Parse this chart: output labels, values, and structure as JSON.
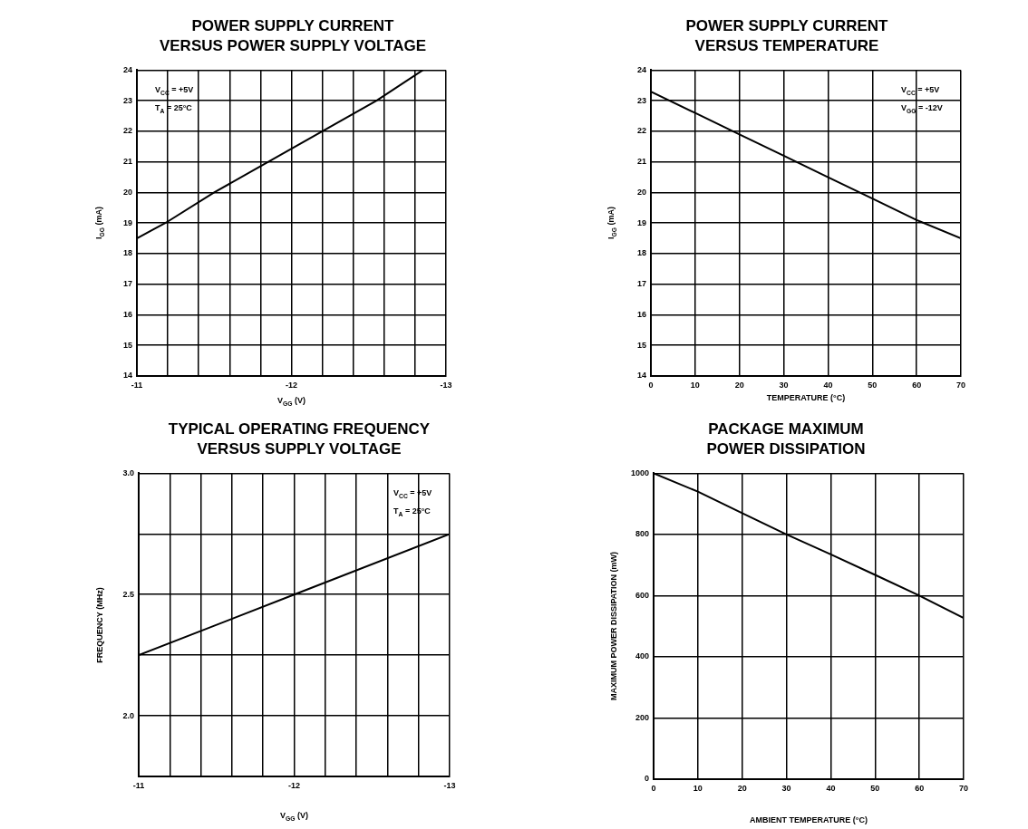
{
  "chart_data": [
    {
      "type": "line",
      "title": "POWER SUPPLY CURRENT\nVERSUS POWER SUPPLY VOLTAGE",
      "xlabel": "V$_{GG}$ (V)",
      "ylabel": "I$_{GG}$ (mA)",
      "annotations": [
        "V$_{CC}$ = +5V",
        "T$_{A}$ = 25°C"
      ],
      "x": [
        -11,
        -11.2,
        -11.5,
        -11.85,
        -12.2,
        -12.55,
        -12.85
      ],
      "values": [
        18.5,
        19.05,
        20,
        21,
        22,
        23,
        24
      ],
      "color": "#000000",
      "xlim": [
        -11,
        -13
      ],
      "ylim": [
        14,
        24
      ],
      "xticks": [
        -11,
        {
          "value": -11.2,
          "label": null
        },
        {
          "value": -11.4,
          "label": null
        },
        {
          "value": -11.6,
          "label": null
        },
        {
          "value": -11.8,
          "label": null
        },
        -12,
        {
          "value": -12.2,
          "label": null
        },
        {
          "value": -12.4,
          "label": null
        },
        {
          "value": -12.6,
          "label": null
        },
        {
          "value": -12.8,
          "label": null
        },
        -13
      ],
      "yticks": [
        14,
        15,
        16,
        17,
        18,
        19,
        20,
        21,
        22,
        23,
        24
      ],
      "grid": true
    },
    {
      "type": "line",
      "title": "POWER SUPPLY CURRENT\nVERSUS TEMPERATURE",
      "xlabel": "TEMPERATURE (°C)",
      "ylabel": "I$_{GG}$ (mA)",
      "annotations": [
        "V$_{CC}$ = +5V",
        "V$_{GG}$ = -12V"
      ],
      "x": [
        0,
        10,
        20,
        30,
        40,
        50,
        60,
        70
      ],
      "values": [
        23.3,
        22.6,
        21.9,
        21.2,
        20.5,
        19.8,
        19.1,
        18.5
      ],
      "color": "#000000",
      "xlim": [
        0,
        70
      ],
      "ylim": [
        14,
        24
      ],
      "xticks": [
        0,
        10,
        20,
        30,
        40,
        50,
        60,
        70
      ],
      "yticks": [
        14,
        15,
        16,
        17,
        18,
        19,
        20,
        21,
        22,
        23,
        24
      ],
      "grid": true
    },
    {
      "type": "line",
      "title": "TYPICAL OPERATING FREQUENCY\nVERSUS SUPPLY VOLTAGE",
      "xlabel": "V$_{GG}$ (V)",
      "ylabel": "FREQUENCY (MHz)",
      "annotations": [
        "V$_{CC}$ = +5V",
        "T$_{A}$ = 25°C"
      ],
      "x": [
        -11,
        -12,
        -13
      ],
      "values": [
        2.25,
        2.5,
        2.75
      ],
      "color": "#000000",
      "xlim": [
        -11,
        -13
      ],
      "ylim": [
        1.75,
        3
      ],
      "xticks": [
        -11,
        {
          "value": -11.2,
          "label": null
        },
        {
          "value": -11.4,
          "label": null
        },
        {
          "value": -11.6,
          "label": null
        },
        {
          "value": -11.8,
          "label": null
        },
        -12,
        {
          "value": -12.2,
          "label": null
        },
        {
          "value": -12.4,
          "label": null
        },
        {
          "value": -12.6,
          "label": null
        },
        {
          "value": -12.8,
          "label": null
        },
        -13
      ],
      "yticks": [
        {
          "value": 1.75,
          "label": null
        },
        {
          "value": 2,
          "label": "2.0"
        },
        {
          "value": 2.25,
          "label": null
        },
        2.5,
        {
          "value": 2.75,
          "label": null
        },
        {
          "value": 3,
          "label": "3.0"
        }
      ],
      "grid": true
    },
    {
      "type": "line",
      "title": "PACKAGE MAXIMUM\nPOWER DISSIPATION",
      "xlabel": "AMBIENT TEMPERATURE (°C)",
      "ylabel": "MAXIMUM POWER DISSIPATION (mW)",
      "x": [
        0,
        10,
        20,
        30,
        40,
        50,
        60,
        70
      ],
      "values": [
        1000,
        940,
        870,
        800,
        735,
        668,
        600,
        527
      ],
      "color": "#000000",
      "xlim": [
        0,
        70
      ],
      "ylim": [
        0,
        1000
      ],
      "xticks": [
        0,
        10,
        20,
        30,
        40,
        50,
        60,
        70
      ],
      "yticks": [
        0,
        200,
        400,
        600,
        800,
        1000
      ],
      "grid": true
    }
  ]
}
